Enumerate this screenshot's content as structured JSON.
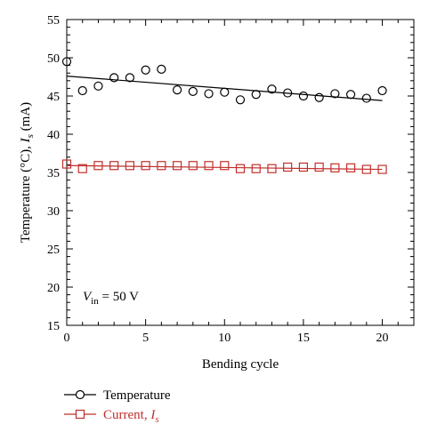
{
  "chart_data": {
    "type": "scatter",
    "xlabel": "Bending cycle",
    "ylabel_main": "Temperature (°C), ",
    "ylabel_italic": "I",
    "ylabel_sub": "s",
    "ylabel_tail": " (mA)",
    "xlim": [
      0,
      22
    ],
    "ylim": [
      15,
      55
    ],
    "xticks": [
      "0",
      "5",
      "10",
      "15",
      "20"
    ],
    "yticks": [
      "15",
      "20",
      "25",
      "30",
      "35",
      "40",
      "45",
      "50",
      "55"
    ],
    "annotation": {
      "var": "V",
      "sub": "in",
      "rest": " = 50 V"
    },
    "series": [
      {
        "name": "Temperature",
        "marker": "circle",
        "color": "#000000",
        "x": [
          0,
          1,
          2,
          3,
          4,
          5,
          6,
          7,
          8,
          9,
          10,
          11,
          12,
          13,
          14,
          15,
          16,
          17,
          18,
          19,
          20
        ],
        "y": [
          49.5,
          45.7,
          46.3,
          47.4,
          47.4,
          48.4,
          48.5,
          45.8,
          45.6,
          45.3,
          45.5,
          44.5,
          45.2,
          45.9,
          45.4,
          45.0,
          44.8,
          45.3,
          45.2,
          44.7,
          45.7
        ],
        "fit": {
          "x": [
            0,
            20
          ],
          "y": [
            47.6,
            44.4
          ]
        }
      },
      {
        "name_main": "Current, ",
        "name_italic": "I",
        "name_sub": "s",
        "marker": "square",
        "color": "#c0302c",
        "x": [
          0,
          1,
          2,
          3,
          4,
          5,
          6,
          7,
          8,
          9,
          10,
          11,
          12,
          13,
          14,
          15,
          16,
          17,
          18,
          19,
          20
        ],
        "y": [
          36.1,
          35.5,
          35.9,
          35.9,
          35.9,
          35.9,
          35.9,
          35.9,
          35.9,
          35.9,
          35.9,
          35.5,
          35.5,
          35.5,
          35.7,
          35.7,
          35.7,
          35.6,
          35.6,
          35.4,
          35.4
        ],
        "fit": {
          "x": [
            0,
            20
          ],
          "y": [
            35.9,
            35.4
          ]
        }
      }
    ],
    "legend": "below"
  }
}
